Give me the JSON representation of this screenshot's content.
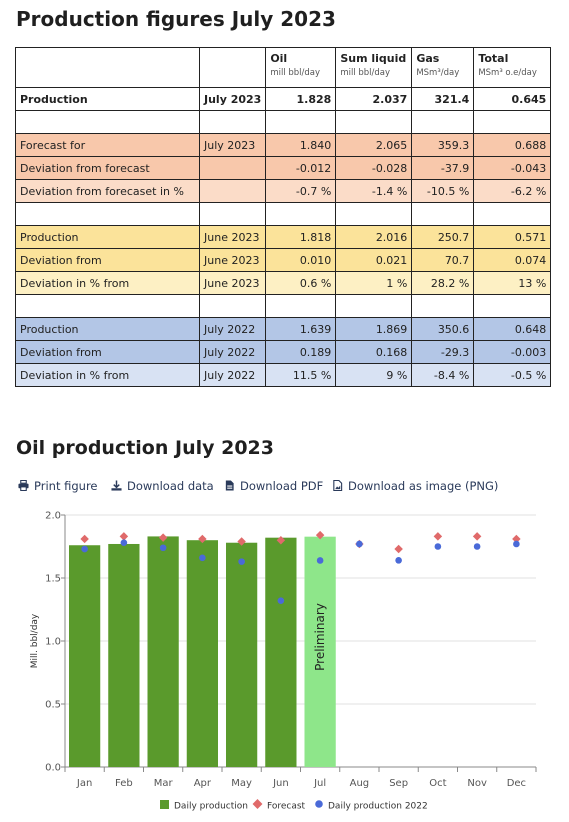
{
  "title": "Production figures July 2023",
  "table": {
    "headers": [
      {
        "label": "Oil",
        "unit": "mill bbl/day"
      },
      {
        "label": "Sum liquid",
        "unit": "mill bbl/day"
      },
      {
        "label": "Gas",
        "unit": "MSm³/day"
      },
      {
        "label": "Total",
        "unit": "MSm³ o.e/day"
      }
    ],
    "rows": [
      {
        "label": "Production",
        "period": "July 2023",
        "oil": "1.828",
        "liquid": "2.037",
        "gas": "321.4",
        "total": "0.645"
      },
      {
        "label": "Forecast for",
        "period": "July 2023",
        "oil": "1.840",
        "liquid": "2.065",
        "gas": "359.3",
        "total": "0.688"
      },
      {
        "label": "Deviation from forecast",
        "period": "",
        "oil": "-0.012",
        "liquid": "-0.028",
        "gas": "-37.9",
        "total": "-0.043"
      },
      {
        "label": "Deviation from forecaset in %",
        "period": "",
        "oil": "-0.7 %",
        "liquid": "-1.4 %",
        "gas": "-10.5 %",
        "total": "-6.2 %"
      },
      {
        "label": "Production",
        "period": "June 2023",
        "oil": "1.818",
        "liquid": "2.016",
        "gas": "250.7",
        "total": "0.571"
      },
      {
        "label": "Deviation from",
        "period": "June 2023",
        "oil": "0.010",
        "liquid": "0.021",
        "gas": "70.7",
        "total": "0.074"
      },
      {
        "label": "Deviation in % from",
        "period": "June 2023",
        "oil": "0.6 %",
        "liquid": "1 %",
        "gas": "28.2 %",
        "total": "13 %"
      },
      {
        "label": "Production",
        "period": "July 2022",
        "oil": "1.639",
        "liquid": "1.869",
        "gas": "350.6",
        "total": "0.648"
      },
      {
        "label": "Deviation from",
        "period": "July 2022",
        "oil": "0.189",
        "liquid": "0.168",
        "gas": "-29.3",
        "total": "-0.003"
      },
      {
        "label": "Deviation in % from",
        "period": "July 2022",
        "oil": "11.5 %",
        "liquid": "9 %",
        "gas": "-8.4 %",
        "total": "-0.5 %"
      }
    ]
  },
  "chart_section": {
    "title": "Oil production July 2023",
    "toolbar": [
      "Print figure",
      "Download data",
      "Download PDF",
      "Download as image (PNG)"
    ]
  },
  "colors": {
    "bar": "#5a9a2c",
    "bar_preliminary": "#8ee68a",
    "forecast": "#e06a6a",
    "prev_year": "#4a6ad8",
    "accent_text": "#2a3a5a"
  },
  "chart_data": {
    "type": "bar",
    "categories": [
      "Jan",
      "Feb",
      "Mar",
      "Apr",
      "May",
      "Jun",
      "Jul",
      "Aug",
      "Sep",
      "Oct",
      "Nov",
      "Dec"
    ],
    "series": [
      {
        "name": "Daily production",
        "values": [
          1.76,
          1.77,
          1.83,
          1.8,
          1.78,
          1.82,
          1.828,
          null,
          null,
          null,
          null,
          null
        ]
      },
      {
        "name": "Forecast",
        "values": [
          1.81,
          1.83,
          1.82,
          1.81,
          1.79,
          1.8,
          1.84,
          1.77,
          1.73,
          1.83,
          1.83,
          1.81
        ]
      },
      {
        "name": "Daily production 2022",
        "values": [
          1.73,
          1.78,
          1.74,
          1.66,
          1.63,
          1.32,
          1.639,
          1.77,
          1.64,
          1.75,
          1.75,
          1.77
        ]
      }
    ],
    "annotation": "Preliminary",
    "ylabel": "Mill. bbl/day",
    "xlabel": "",
    "ylim": [
      0,
      2.0
    ],
    "yticks": [
      "0.0",
      "0.5",
      "1.0",
      "1.5",
      "2.0"
    ],
    "grid": true,
    "legend": "bottom"
  }
}
